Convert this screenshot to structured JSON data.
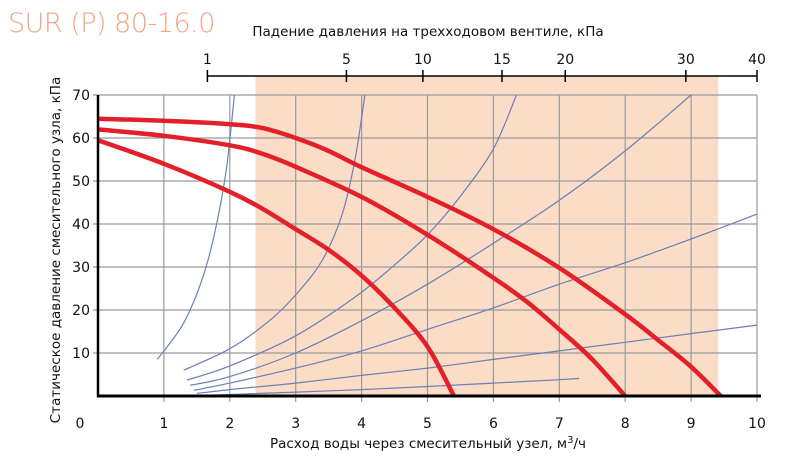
{
  "chart_data": {
    "type": "line",
    "title": "SUR (P) 80-16.0",
    "xlabel": "Расход воды через смесительный узел, м³/ч",
    "xlabel_parts": {
      "pre": "Расход воды через смесительный узел, м",
      "sup": "3",
      "post": "/ч"
    },
    "ylabel": "Статическое давление смесительного узла, кПа",
    "top_xlabel": "Падение давления на трехходовом вентиле, кПа",
    "xlim": [
      0,
      10
    ],
    "ylim": [
      0,
      70
    ],
    "x_ticks": [
      "0",
      "1",
      "2",
      "3",
      "4",
      "5",
      "6",
      "7",
      "8",
      "9",
      "10"
    ],
    "y_ticks": [
      "0",
      "10",
      "20",
      "30",
      "40",
      "50",
      "60",
      "70"
    ],
    "top_axis": {
      "ticks": [
        {
          "label": "1",
          "x_flow": 1.66
        },
        {
          "label": "5",
          "x_flow": 3.77
        },
        {
          "label": "10",
          "x_flow": 4.93
        },
        {
          "label": "15",
          "x_flow": 6.13
        },
        {
          "label": "20",
          "x_flow": 7.09
        },
        {
          "label": "30",
          "x_flow": 8.92
        },
        {
          "label": "40",
          "x_flow": 10.0
        }
      ],
      "range_flow": [
        1.66,
        10.0
      ]
    },
    "shaded_region": {
      "x_from": 2.39,
      "x_to": 9.41,
      "color": "#fbdcc6"
    },
    "grid": true,
    "colors": {
      "pump_curve": "#e3202a",
      "valve_curve": "#6b7fb8",
      "grid": "#9a9a9a",
      "axis": "#000000",
      "title": "#f0a582"
    },
    "series": [
      {
        "name": "pump-curve-high",
        "kind": "pump",
        "points": [
          [
            0,
            64.5
          ],
          [
            1,
            64
          ],
          [
            2,
            63.2
          ],
          [
            2.5,
            62.3
          ],
          [
            3,
            60
          ],
          [
            3.5,
            57
          ],
          [
            4,
            53.2
          ],
          [
            5,
            46.3
          ],
          [
            6,
            38.8
          ],
          [
            7,
            29.8
          ],
          [
            8,
            19
          ],
          [
            8.5,
            13
          ],
          [
            9,
            6.8
          ],
          [
            9.45,
            0
          ]
        ]
      },
      {
        "name": "pump-curve-mid",
        "kind": "pump",
        "points": [
          [
            0,
            62
          ],
          [
            1,
            60.5
          ],
          [
            2,
            58.3
          ],
          [
            2.5,
            56.3
          ],
          [
            3,
            53.3
          ],
          [
            4,
            46.3
          ],
          [
            5,
            37.5
          ],
          [
            6,
            27.5
          ],
          [
            6.5,
            22
          ],
          [
            7,
            15.5
          ],
          [
            7.5,
            8.5
          ],
          [
            8,
            0
          ]
        ]
      },
      {
        "name": "pump-curve-low",
        "kind": "pump",
        "points": [
          [
            0,
            59.5
          ],
          [
            1,
            54
          ],
          [
            2,
            47.5
          ],
          [
            2.5,
            43.5
          ],
          [
            3,
            38.8
          ],
          [
            3.5,
            34
          ],
          [
            4,
            28
          ],
          [
            4.5,
            20.5
          ],
          [
            5,
            11.5
          ],
          [
            5.4,
            0
          ]
        ]
      },
      {
        "name": "valve-curve-1",
        "kind": "valve",
        "points": [
          [
            0.9,
            8.5
          ],
          [
            1.3,
            17
          ],
          [
            1.6,
            28
          ],
          [
            1.8,
            40
          ],
          [
            1.95,
            53
          ],
          [
            2.07,
            70
          ]
        ]
      },
      {
        "name": "valve-curve-2",
        "kind": "valve",
        "points": [
          [
            1.3,
            6
          ],
          [
            2,
            11
          ],
          [
            2.6,
            17.5
          ],
          [
            3,
            23.5
          ],
          [
            3.4,
            31.5
          ],
          [
            3.7,
            42
          ],
          [
            3.9,
            55
          ],
          [
            4.05,
            70
          ]
        ]
      },
      {
        "name": "valve-curve-3",
        "kind": "valve",
        "points": [
          [
            1.35,
            3.7
          ],
          [
            2,
            7
          ],
          [
            3,
            14
          ],
          [
            3.9,
            23
          ],
          [
            4.5,
            30.5
          ],
          [
            5,
            37.5
          ],
          [
            5.5,
            46.5
          ],
          [
            6,
            57.5
          ],
          [
            6.35,
            70
          ]
        ]
      },
      {
        "name": "valve-curve-4",
        "kind": "valve",
        "points": [
          [
            1.4,
            2.5
          ],
          [
            2,
            4.5
          ],
          [
            3,
            10
          ],
          [
            4,
            17.5
          ],
          [
            5,
            26
          ],
          [
            6,
            35.5
          ],
          [
            7,
            45.5
          ],
          [
            8,
            57
          ],
          [
            9,
            70
          ]
        ]
      },
      {
        "name": "valve-curve-5",
        "kind": "valve",
        "points": [
          [
            1.45,
            1.3
          ],
          [
            2,
            3
          ],
          [
            3,
            6.5
          ],
          [
            4,
            10.5
          ],
          [
            5,
            15.5
          ],
          [
            6,
            20.5
          ],
          [
            7,
            26
          ],
          [
            8,
            31
          ],
          [
            9,
            36.5
          ],
          [
            10,
            42.3
          ]
        ]
      },
      {
        "name": "valve-curve-6",
        "kind": "valve",
        "points": [
          [
            1.5,
            0.6
          ],
          [
            2,
            1.5
          ],
          [
            3,
            3
          ],
          [
            4,
            4.8
          ],
          [
            5,
            6.5
          ],
          [
            6,
            8.5
          ],
          [
            7,
            10.5
          ],
          [
            8,
            12.5
          ],
          [
            9,
            14.5
          ],
          [
            10,
            16.5
          ]
        ]
      },
      {
        "name": "valve-curve-7",
        "kind": "valve",
        "points": [
          [
            1.75,
            0.2
          ],
          [
            3,
            0.9
          ],
          [
            4,
            1.5
          ],
          [
            5,
            2.2
          ],
          [
            6,
            3
          ],
          [
            7,
            3.8
          ],
          [
            7.3,
            4.1
          ]
        ]
      }
    ]
  }
}
